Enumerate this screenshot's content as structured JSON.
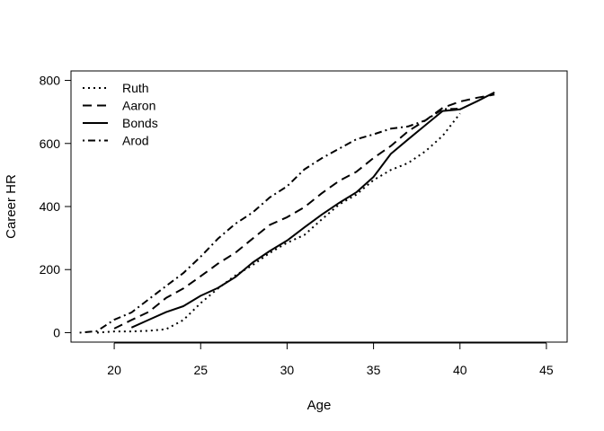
{
  "chart_data": {
    "type": "line",
    "title": "",
    "xlabel": "Age",
    "ylabel": "Career HR",
    "xlim": [
      17.5,
      46.2
    ],
    "ylim": [
      -30,
      830
    ],
    "xticks": [
      20,
      25,
      30,
      35,
      40,
      45
    ],
    "yticks": [
      0,
      200,
      400,
      600,
      800
    ],
    "grid": false,
    "legend_position": "top-left",
    "series": [
      {
        "name": "Ruth",
        "dash": "dotted",
        "x": [
          19,
          20,
          21,
          22,
          23,
          24,
          25,
          26,
          27,
          28,
          29,
          30,
          31,
          32,
          33,
          34,
          35,
          36,
          37,
          38,
          39,
          40
        ],
        "y": [
          0,
          4,
          4,
          6,
          11,
          40,
          94,
          140,
          181,
          214,
          253,
          285,
          310,
          359,
          406,
          438,
          484,
          516,
          538,
          575,
          624,
          695
        ]
      },
      {
        "name": "Aaron",
        "dash": "dashed",
        "x": [
          20,
          21,
          22,
          23,
          24,
          25,
          26,
          27,
          28,
          29,
          30,
          31,
          32,
          33,
          34,
          35,
          36,
          37,
          38,
          39,
          40,
          41,
          42
        ],
        "y": [
          13,
          40,
          66,
          110,
          140,
          179,
          219,
          253,
          298,
          342,
          366,
          398,
          442,
          481,
          510,
          554,
          592,
          639,
          673,
          713,
          733,
          745,
          755
        ]
      },
      {
        "name": "Bonds",
        "dash": "solid",
        "x": [
          21,
          22,
          23,
          24,
          25,
          26,
          27,
          28,
          29,
          30,
          31,
          32,
          33,
          34,
          35,
          36,
          37,
          38,
          39,
          40,
          41,
          42
        ],
        "y": [
          16,
          41,
          65,
          84,
          117,
          142,
          176,
          222,
          259,
          292,
          334,
          374,
          411,
          445,
          494,
          567,
          613,
          658,
          703,
          708,
          734,
          762
        ]
      },
      {
        "name": "Arod",
        "dash": "dotdash",
        "x": [
          18,
          19,
          20,
          21,
          22,
          23,
          24,
          25,
          26,
          27,
          28,
          29,
          30,
          31,
          32,
          33,
          34,
          35,
          36,
          37,
          38,
          39,
          40
        ],
        "y": [
          0,
          5,
          41,
          64,
          106,
          148,
          189,
          241,
          298,
          345,
          381,
          429,
          464,
          518,
          553,
          583,
          613,
          629,
          647,
          654,
          673,
          709,
          710
        ]
      }
    ]
  }
}
